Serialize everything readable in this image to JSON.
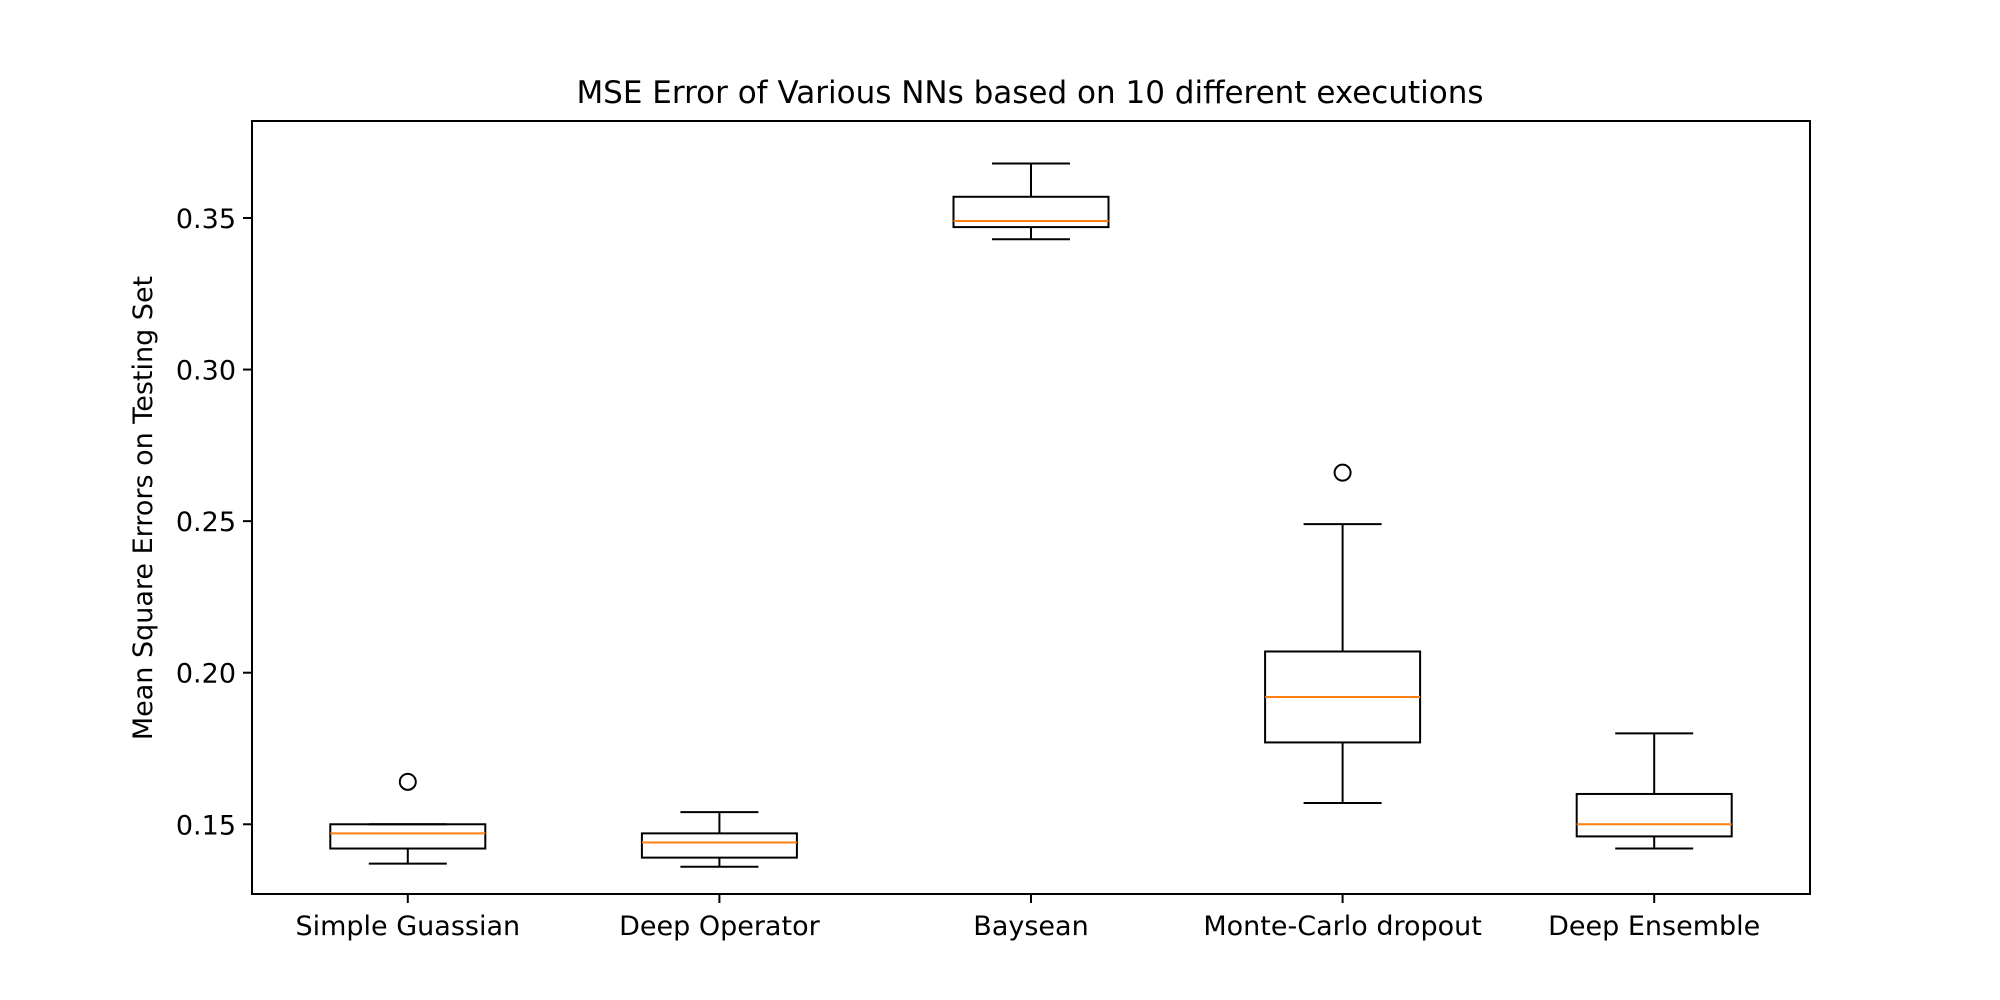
{
  "chart_data": {
    "type": "box",
    "title": "MSE Error of Various NNs based on 10 different executions",
    "xlabel": "",
    "ylabel": "Mean Square Errors on Testing Set",
    "ylim": [
      0.127,
      0.382
    ],
    "yticks": [
      "0.15",
      "0.20",
      "0.25",
      "0.30",
      "0.35"
    ],
    "grid": false,
    "colors": {
      "box": "#000000",
      "median": "#ff7f0e"
    },
    "categories": [
      "Simple Guassian",
      "Deep Operator",
      "Baysean",
      "Monte-Carlo dropout",
      "Deep Ensemble"
    ],
    "boxes": [
      {
        "whisker_low": 0.137,
        "q1": 0.142,
        "median": 0.147,
        "q3": 0.15,
        "whisker_high": 0.15,
        "outliers": [
          0.164
        ]
      },
      {
        "whisker_low": 0.136,
        "q1": 0.139,
        "median": 0.144,
        "q3": 0.147,
        "whisker_high": 0.154,
        "outliers": []
      },
      {
        "whisker_low": 0.343,
        "q1": 0.347,
        "median": 0.349,
        "q3": 0.357,
        "whisker_high": 0.368,
        "outliers": []
      },
      {
        "whisker_low": 0.157,
        "q1": 0.177,
        "median": 0.192,
        "q3": 0.207,
        "whisker_high": 0.249,
        "outliers": [
          0.266
        ]
      },
      {
        "whisker_low": 0.142,
        "q1": 0.146,
        "median": 0.15,
        "q3": 0.16,
        "whisker_high": 0.18,
        "outliers": []
      }
    ]
  }
}
